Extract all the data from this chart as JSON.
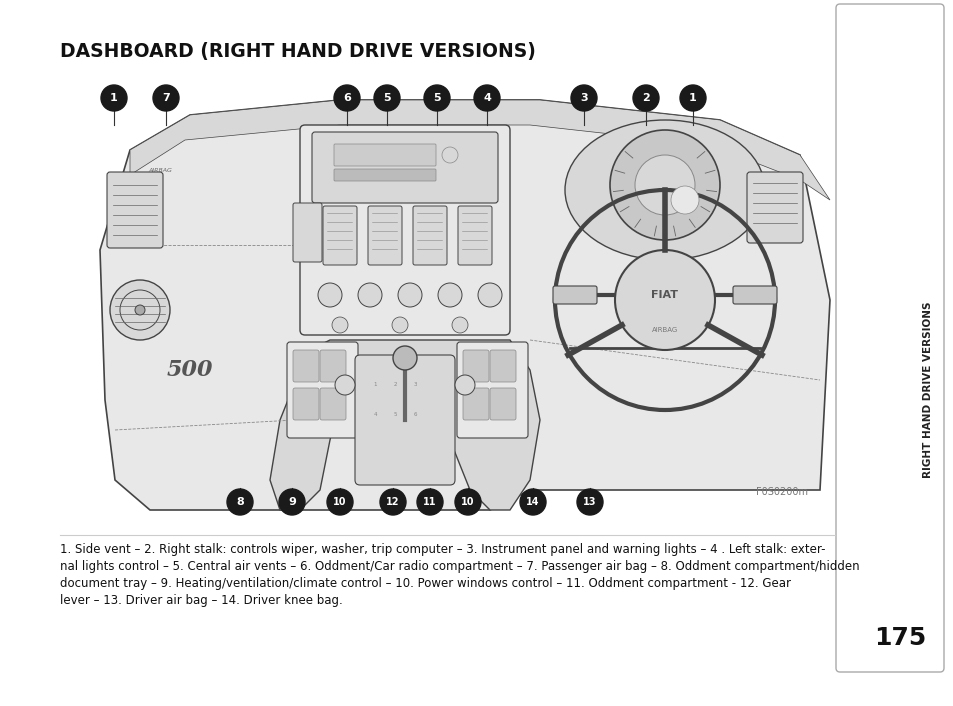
{
  "title": "DASHBOARD (RIGHT HAND DRIVE VERSIONS)",
  "body_text_line1": "1. Side vent – 2. Right stalk: controls wiper, washer, trip computer – 3. Instrument panel and warning lights – 4 . Left stalk: exter-",
  "body_text_line2": "nal lights control – 5. Central air vents – 6. Oddment/Car radio compartment – 7. Passenger air bag – 8. Oddment compartment/hidden",
  "body_text_line3": "document tray – 9. Heating/ventilation/climate control – 10. Power windows control – 11. Oddment compartment - 12. Gear",
  "body_text_line4": "lever – 13. Driver air bag – 14. Driver knee bag.",
  "page_number": "175",
  "side_tab_text": "RIGHT HAND DRIVE VERSIONS",
  "ref_code": "F0S0200m",
  "bg_color": "#ffffff",
  "top_callouts": [
    {
      "label": "1",
      "xf": 0.12
    },
    {
      "label": "7",
      "xf": 0.173
    },
    {
      "label": "6",
      "xf": 0.365
    },
    {
      "label": "5",
      "xf": 0.405
    },
    {
      "label": "5",
      "xf": 0.456
    },
    {
      "label": "4",
      "xf": 0.508
    },
    {
      "label": "3",
      "xf": 0.612
    },
    {
      "label": "2",
      "xf": 0.678
    },
    {
      "label": "1",
      "xf": 0.725
    }
  ],
  "bot_callouts": [
    {
      "label": "8",
      "xf": 0.251
    },
    {
      "label": "9",
      "xf": 0.305
    },
    {
      "label": "10",
      "xf": 0.354
    },
    {
      "label": "12",
      "xf": 0.412
    },
    {
      "label": "11",
      "xf": 0.45
    },
    {
      "label": "10",
      "xf": 0.49
    },
    {
      "label": "14",
      "xf": 0.559
    },
    {
      "label": "13",
      "xf": 0.617
    }
  ]
}
